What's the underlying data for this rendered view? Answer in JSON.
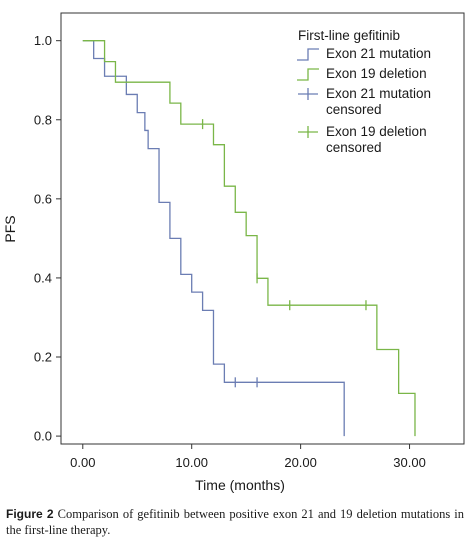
{
  "chart_data": {
    "type": "line",
    "subtype": "kaplan-meier step",
    "xlabel": "Time (months)",
    "ylabel": "PFS",
    "xlim": [
      -2,
      35
    ],
    "ylim": [
      -0.02,
      1.07
    ],
    "x_ticks": [
      0,
      10,
      20,
      30
    ],
    "x_tick_labels": [
      "0.00",
      "10.00",
      "20.00",
      "30.00"
    ],
    "y_ticks": [
      0.0,
      0.2,
      0.4,
      0.6,
      0.8,
      1.0
    ],
    "y_tick_labels": [
      "0.0",
      "0.2",
      "0.4",
      "0.6",
      "0.8",
      "1.0"
    ],
    "grid": false,
    "legend": {
      "title": "First-line gefitinib",
      "placement": "top-right",
      "entries": [
        {
          "lines": [
            "Exon 21 mutation"
          ],
          "kind": "step",
          "color": "#6b7db3"
        },
        {
          "lines": [
            "Exon 19 deletion"
          ],
          "kind": "step",
          "color": "#7ab648"
        },
        {
          "lines": [
            "Exon 21 mutation",
            "censored"
          ],
          "kind": "censor",
          "color": "#6b7db3"
        },
        {
          "lines": [
            "Exon 19 deletion",
            "censored"
          ],
          "kind": "censor",
          "color": "#7ab648"
        }
      ]
    },
    "series": [
      {
        "name": "Exon 21 mutation",
        "color": "#6b7db3",
        "steps": [
          [
            0,
            1.0
          ],
          [
            1,
            0.955
          ],
          [
            2,
            0.91
          ],
          [
            4,
            0.864
          ],
          [
            5,
            0.818
          ],
          [
            5.7,
            0.773
          ],
          [
            6,
            0.727
          ],
          [
            7,
            0.591
          ],
          [
            8,
            0.5
          ],
          [
            9,
            0.409
          ],
          [
            10,
            0.364
          ],
          [
            11,
            0.318
          ],
          [
            12,
            0.182
          ],
          [
            13,
            0.136
          ],
          [
            24,
            0.0
          ]
        ],
        "end_x": 24,
        "censored": [
          [
            14,
            0.136
          ],
          [
            16,
            0.136
          ]
        ]
      },
      {
        "name": "Exon 19 deletion",
        "color": "#7ab648",
        "steps": [
          [
            0,
            1.0
          ],
          [
            2,
            0.947
          ],
          [
            3,
            0.895
          ],
          [
            8,
            0.842
          ],
          [
            9,
            0.789
          ],
          [
            12,
            0.737
          ],
          [
            13,
            0.632
          ],
          [
            14,
            0.566
          ],
          [
            15,
            0.507
          ],
          [
            16,
            0.399
          ],
          [
            17,
            0.331
          ],
          [
            27,
            0.219
          ],
          [
            29,
            0.108
          ],
          [
            30.5,
            0.0
          ]
        ],
        "end_x": 30.5,
        "censored": [
          [
            11,
            0.789
          ],
          [
            16,
            0.399
          ],
          [
            19,
            0.331
          ],
          [
            26,
            0.331
          ]
        ]
      }
    ]
  },
  "caption": {
    "label": "Figure 2",
    "text": "Comparison of gefitinib between positive exon 21 and 19 deletion mutations in the first-line therapy."
  }
}
